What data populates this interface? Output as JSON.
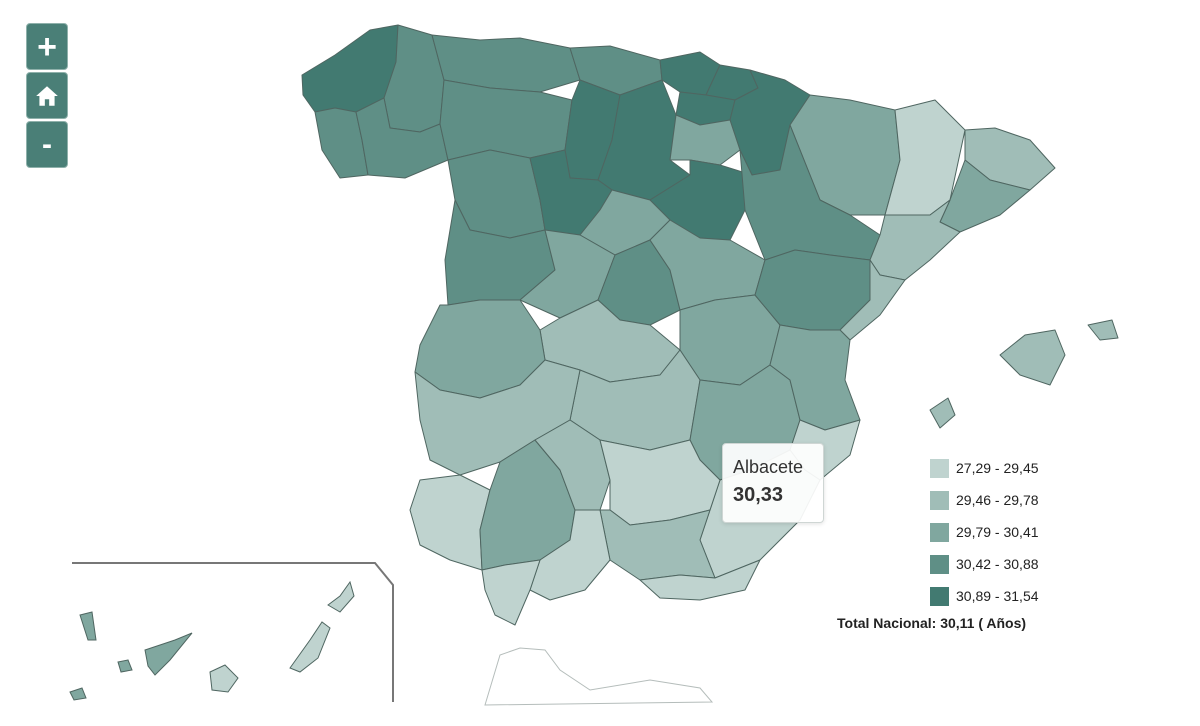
{
  "zoom_controls": {
    "zoom_in_label": "+",
    "zoom_out_label": "-"
  },
  "tooltip": {
    "name": "Albacete",
    "value": "30,33"
  },
  "legend": [
    {
      "label": "27,29 - 29,45",
      "color": "#bfd3cf"
    },
    {
      "label": "29,46 - 29,78",
      "color": "#a0bdb7"
    },
    {
      "label": "29,79 - 30,41",
      "color": "#80a79f"
    },
    {
      "label": "30,42 - 30,88",
      "color": "#5f8f86"
    },
    {
      "label": "30,89 - 31,54",
      "color": "#427a71"
    }
  ],
  "total_label": "Total Nacional: 30,11 ( Años)",
  "colors": {
    "border": "#5a6e6a",
    "button_bg": "#4a7f77",
    "ceuta_melilla_outline": "#b5bdbb"
  }
}
